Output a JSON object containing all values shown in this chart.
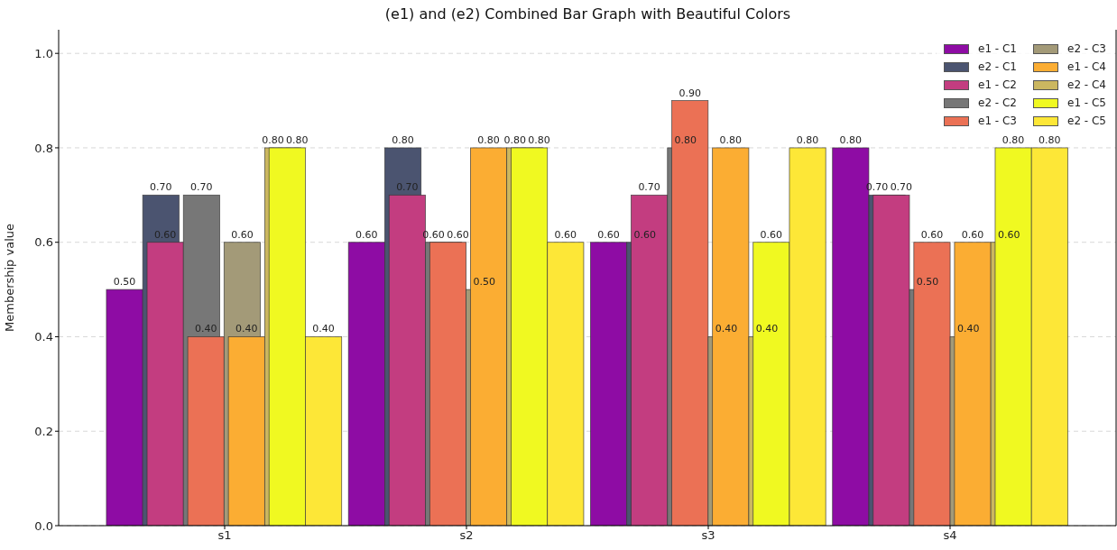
{
  "chart_data": {
    "type": "bar",
    "title": "(e1) and (e2) Combined Bar Graph with Beautiful Colors",
    "ylabel": "Membership value",
    "categories": [
      "s1",
      "s2",
      "s3",
      "s4"
    ],
    "series": [
      {
        "name": "e1 - C1",
        "color": "#8e0ca4",
        "values": [
          0.5,
          0.6,
          0.6,
          0.8
        ],
        "value_labels": [
          "0.50",
          "0.60",
          "0.60",
          "0.80"
        ]
      },
      {
        "name": "e2 - C1",
        "color": "#4b5470",
        "values": [
          0.7,
          0.8,
          0.6,
          0.7
        ],
        "value_labels": [
          "0.70",
          "0.80",
          "0.60",
          "0.70"
        ]
      },
      {
        "name": "e1 - C2",
        "color": "#c33d80",
        "values": [
          0.6,
          0.7,
          0.7,
          0.7
        ],
        "value_labels": [
          "0.60",
          "0.70",
          "0.70",
          "0.70"
        ]
      },
      {
        "name": "e2 - C2",
        "color": "#777777",
        "values": [
          0.7,
          0.6,
          0.8,
          0.5
        ],
        "value_labels": [
          "0.70",
          "0.60",
          "0.80",
          "0.50"
        ]
      },
      {
        "name": "e1 - C3",
        "color": "#eb7155",
        "values": [
          0.4,
          0.6,
          0.9,
          0.6
        ],
        "value_labels": [
          "0.40",
          "0.60",
          "0.90",
          "0.60"
        ]
      },
      {
        "name": "e2 - C3",
        "color": "#a39a78",
        "values": [
          0.6,
          0.5,
          0.4,
          0.4
        ],
        "value_labels": [
          "0.60",
          "0.50",
          "0.40",
          "0.40"
        ]
      },
      {
        "name": "e1 - C4",
        "color": "#fbad33",
        "values": [
          0.4,
          0.8,
          0.8,
          0.6
        ],
        "value_labels": [
          "0.40",
          "0.80",
          "0.80",
          "0.60"
        ]
      },
      {
        "name": "e2 - C4",
        "color": "#cbb760",
        "values": [
          0.8,
          0.8,
          0.4,
          0.6
        ],
        "value_labels": [
          "0.80",
          "0.80",
          "0.40",
          "0.60"
        ]
      },
      {
        "name": "e1 - C5",
        "color": "#f0f921",
        "values": [
          0.8,
          0.8,
          0.6,
          0.8
        ],
        "value_labels": [
          "0.80",
          "0.80",
          "0.60",
          "0.80"
        ]
      },
      {
        "name": "e2 - C5",
        "color": "#fde737",
        "values": [
          0.4,
          0.6,
          0.8,
          0.8
        ],
        "value_labels": [
          "0.40",
          "0.60",
          "0.80",
          "0.80"
        ]
      }
    ],
    "ylim": [
      0,
      1.05
    ],
    "yticks": [
      {
        "value": 0,
        "label": "0.0"
      },
      {
        "value": 0.2,
        "label": "0.2"
      },
      {
        "value": 0.4,
        "label": "0.4"
      },
      {
        "value": 0.6,
        "label": "0.6"
      },
      {
        "value": 0.8,
        "label": "0.8"
      },
      {
        "value": 1,
        "label": "1.0"
      }
    ],
    "grid": "y",
    "legend": "top right"
  }
}
